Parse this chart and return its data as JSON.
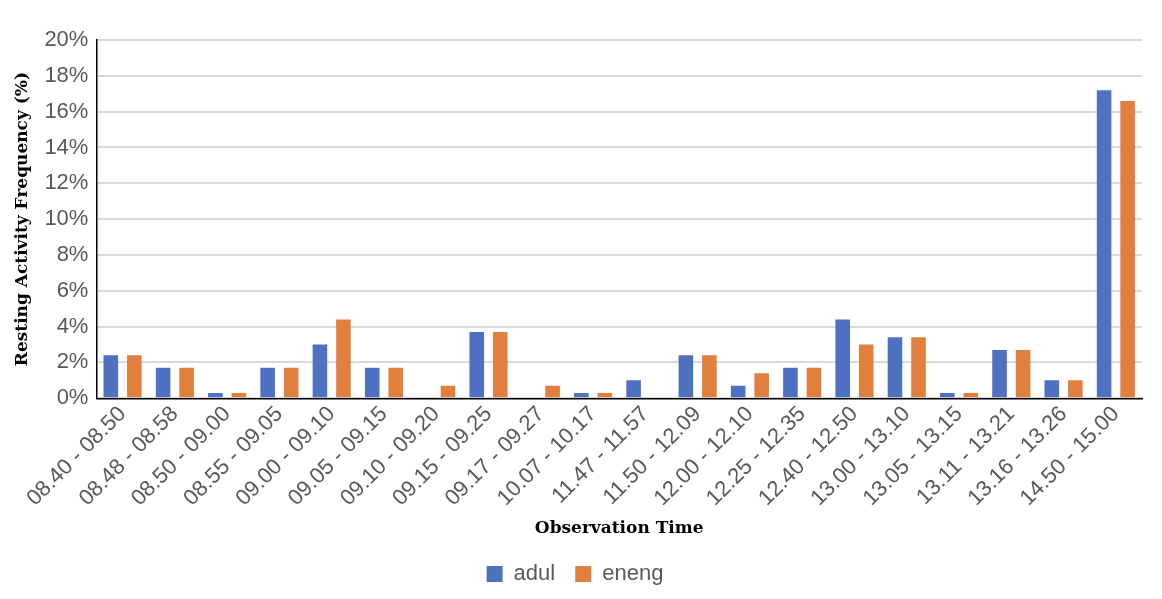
{
  "chart_data": {
    "type": "bar",
    "xlabel": "Observation Time",
    "ylabel": "Resting Activity Frequency (%)",
    "categories": [
      "08.40 - 08.50",
      "08.48 - 08.58",
      "08.50 - 09.00",
      "08.55 - 09.05",
      "09.00 - 09.10",
      "09.05 - 09.15",
      "09.10 - 09.20",
      "09.15 - 09.25",
      "09.17 - 09.27",
      "10.07 - 10.17",
      "11.47 - 11.57",
      "11.50 - 12.09",
      "12.00 - 12.10",
      "12.25 - 12.35",
      "12.40 - 12.50",
      "13.00 - 13.10",
      "13.05 - 13.15",
      "13.11 - 13.21",
      "13.16 - 13.26",
      "14.50 - 15.00"
    ],
    "series": [
      {
        "name": "adul",
        "color": "#4e71c1",
        "values": [
          2.4,
          1.7,
          0.3,
          1.7,
          3.0,
          1.7,
          0,
          3.7,
          0,
          0.3,
          1.0,
          2.4,
          0.7,
          1.7,
          4.4,
          3.4,
          0.3,
          2.7,
          1.0,
          17.2
        ]
      },
      {
        "name": "eneng",
        "color": "#e07f3e",
        "values": [
          2.4,
          1.7,
          0.3,
          1.7,
          4.4,
          1.7,
          0.7,
          3.7,
          0.7,
          0.3,
          0,
          2.4,
          1.4,
          1.7,
          3.0,
          3.4,
          0.3,
          2.7,
          1.0,
          16.6
        ]
      }
    ],
    "ylim": [
      0,
      20
    ],
    "yticks": [
      {
        "value": 0,
        "label": "0%"
      },
      {
        "value": 2,
        "label": "2%"
      },
      {
        "value": 4,
        "label": "4%"
      },
      {
        "value": 6,
        "label": "6%"
      },
      {
        "value": 8,
        "label": "8%"
      },
      {
        "value": 10,
        "label": "10%"
      },
      {
        "value": 12,
        "label": "12%"
      },
      {
        "value": 14,
        "label": "14%"
      },
      {
        "value": 16,
        "label": "16%"
      },
      {
        "value": 18,
        "label": "18%"
      },
      {
        "value": 20,
        "label": "20%"
      }
    ],
    "grid": "y",
    "legend": "bottom"
  }
}
